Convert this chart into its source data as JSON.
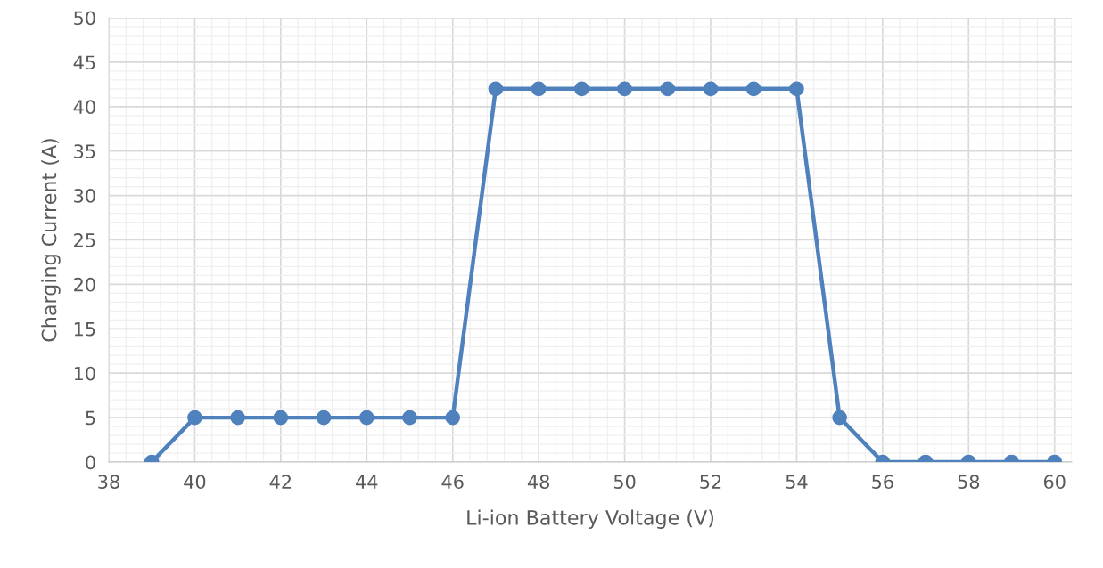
{
  "chart_data": {
    "type": "line",
    "xlabel": "Li-ion Battery Voltage (V)",
    "ylabel": "Charging Current (A)",
    "x": [
      39,
      40,
      41,
      42,
      43,
      44,
      45,
      46,
      47,
      48,
      49,
      50,
      51,
      52,
      53,
      54,
      55,
      56,
      57,
      58,
      59,
      60
    ],
    "series": [
      {
        "color": "#4f81bd",
        "values": [
          0,
          5,
          5,
          5,
          5,
          5,
          5,
          5,
          42,
          42,
          42,
          42,
          42,
          42,
          42,
          42,
          5,
          0,
          0,
          0,
          0,
          0
        ]
      }
    ],
    "xlim": [
      38,
      60.4
    ],
    "xticks": [
      38,
      40,
      42,
      44,
      46,
      48,
      50,
      52,
      54,
      56,
      58,
      60
    ],
    "ylim": [
      0,
      50
    ],
    "yticks": [
      0,
      5,
      10,
      15,
      20,
      25,
      30,
      35,
      40,
      45,
      50
    ],
    "grid": true,
    "marker": "circle",
    "line_style": "solid",
    "legend": false
  }
}
